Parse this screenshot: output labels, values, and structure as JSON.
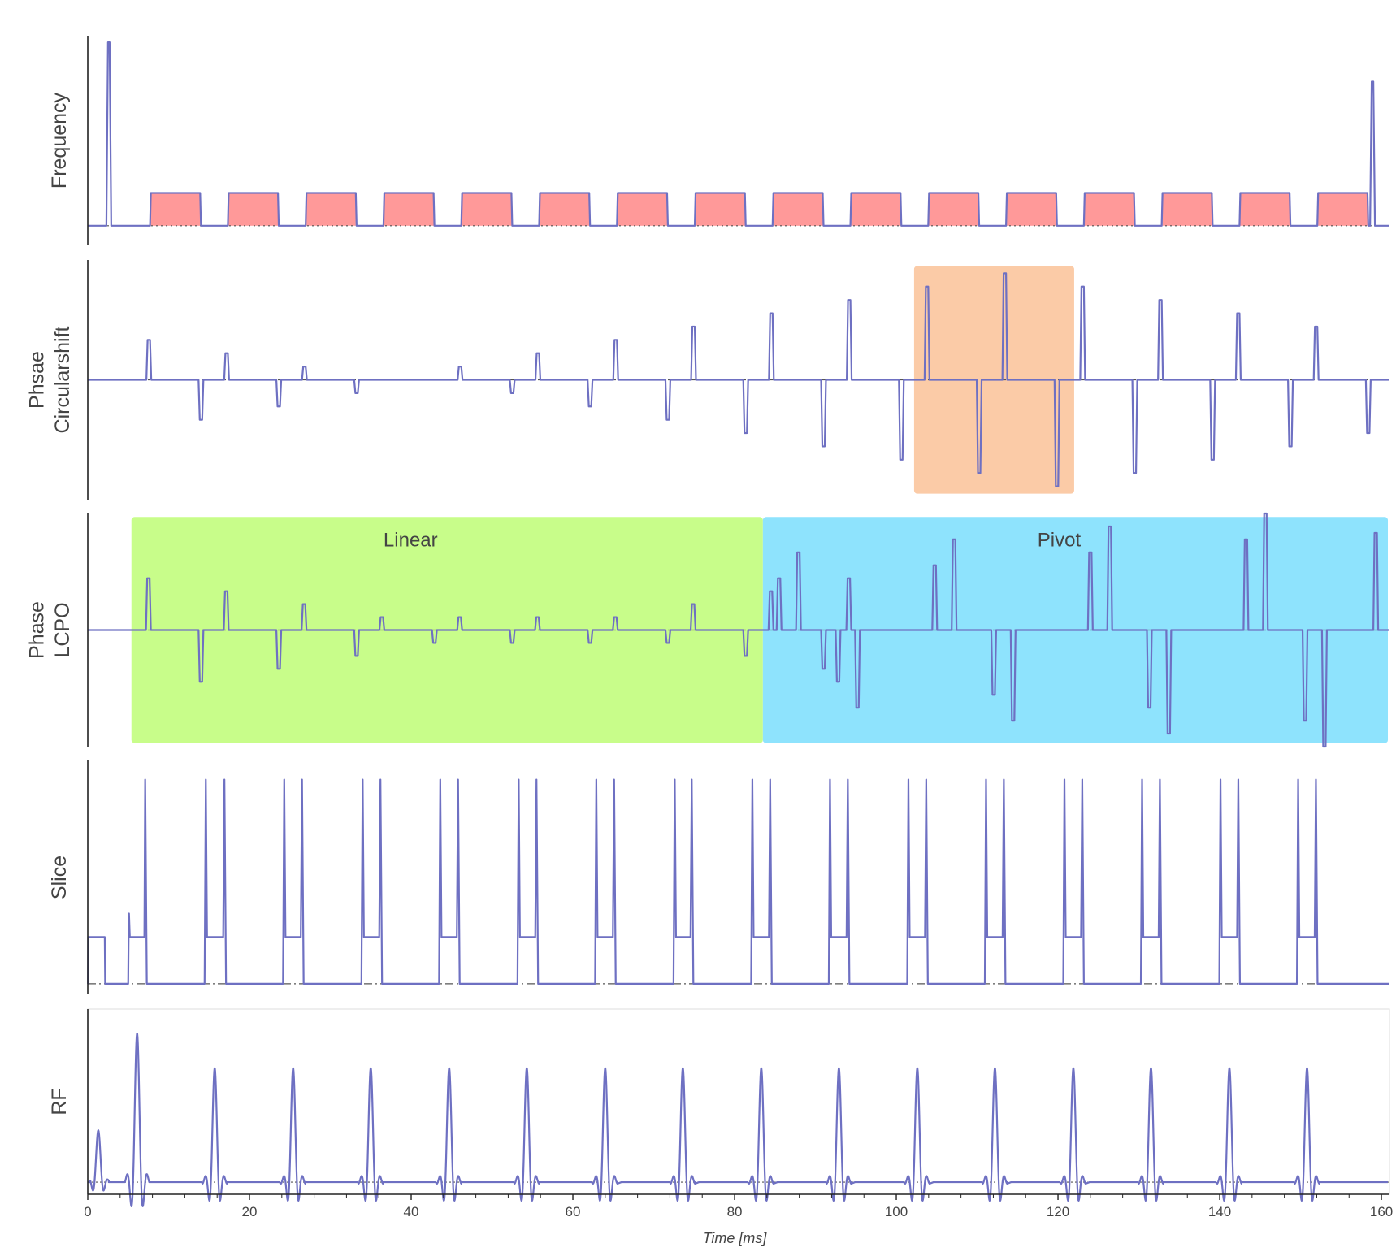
{
  "chart_data": {
    "type": "line",
    "title": "",
    "xlabel": "Time [ms]",
    "xlim": [
      0,
      161
    ],
    "x_ticks": [
      0,
      20,
      40,
      60,
      80,
      100,
      120,
      140,
      160
    ],
    "line_color": "#6e70c2",
    "tr_ms": 9.625,
    "first_echo_ms": 7.5,
    "num_echoes": 16,
    "channels": [
      {
        "id": "frequency",
        "label": "Frequency",
        "ylim": [
          -0.15,
          1.45
        ],
        "prephaser": {
          "center": 2.6,
          "width": 0.6,
          "amplitude": 1.4
        },
        "rephaser": {
          "center": 158.9,
          "width": 0.6,
          "amplitude": 1.1
        },
        "readout": {
          "start": 7.7,
          "duration": 6.3,
          "amplitude": 0.25,
          "fill": "#ff9999"
        }
      },
      {
        "id": "circularshift",
        "label": [
          "Phsae",
          "Circularshift"
        ],
        "ylim": [
          -0.9,
          0.9
        ],
        "blip_width": 0.6,
        "blip_offset": 1.9,
        "amplitudes": [
          0.3,
          0.2,
          0.1,
          0.0,
          0.1,
          0.2,
          0.3,
          0.4,
          0.5,
          0.6,
          0.7,
          0.8,
          0.7,
          0.6,
          0.5,
          0.4
        ],
        "highlight": {
          "x_start": 102.2,
          "x_end": 122,
          "fill": "#fbcba7"
        }
      },
      {
        "id": "lcpo",
        "label": [
          "Phase",
          "LCPO"
        ],
        "ylim": [
          -0.9,
          0.9
        ],
        "blip_width": 0.6,
        "blip_offset": 1.9,
        "amplitudes": [
          0.4,
          0.3,
          0.2,
          0.1,
          0.1,
          0.1,
          0.1,
          0.2,
          0.3,
          0.4
        ],
        "pivot": {
          "echoes": [
            8,
            10,
            12,
            14
          ],
          "pair_gap": 2.4,
          "inner": 0.4,
          "outer": 0.6,
          "outer_step": 0.1,
          "final_blip": 159.3
        },
        "regions": [
          {
            "label": "Linear",
            "x_start": 5.4,
            "x_end": 83.5,
            "fill": "#c8fd8a"
          },
          {
            "label": "Pivot",
            "x_start": 83.5,
            "x_end": 160.8,
            "fill": "#8ee3fd"
          }
        ]
      },
      {
        "id": "slice",
        "label": "Slice",
        "ylim": [
          -0.05,
          1.05
        ],
        "crusher_amplitude": 0.22,
        "spike_amplitude": 0.96,
        "initial_spike": 5.2,
        "crusher_pairs": [
          [
            7.1,
            7.4
          ],
          [
            14.6,
            14.9
          ],
          [
            16.9,
            17.2
          ],
          [
            24.3,
            24.6
          ],
          [
            26.5,
            26.8
          ],
          [
            34.0,
            34.3
          ],
          [
            36.2,
            36.5
          ],
          [
            43.6,
            43.9
          ],
          [
            45.8,
            46.1
          ],
          [
            53.3,
            53.6
          ],
          [
            55.5,
            55.8
          ],
          [
            62.9,
            63.2
          ],
          [
            65.1,
            65.4
          ],
          [
            72.6,
            72.9
          ],
          [
            74.7,
            75.0
          ],
          [
            82.2,
            82.5
          ],
          [
            84.4,
            84.7
          ],
          [
            91.8,
            92.1
          ],
          [
            94.0,
            94.3
          ],
          [
            101.5,
            101.8
          ],
          [
            103.7,
            104.0
          ],
          [
            111.1,
            111.4
          ],
          [
            113.3,
            113.6
          ],
          [
            120.8,
            121.1
          ],
          [
            123.0,
            123.3
          ],
          [
            130.4,
            130.7
          ],
          [
            132.6,
            132.9
          ],
          [
            140.1,
            140.4
          ],
          [
            142.3,
            142.6
          ],
          [
            149.7,
            150.0
          ],
          [
            151.9,
            152.2
          ]
        ]
      },
      {
        "id": "rf",
        "label": "RF",
        "ylim": [
          -0.07,
          1.0
        ],
        "excitation": {
          "center": 1.3,
          "amplitude": 0.3
        },
        "first_refocus": {
          "center": 6.1,
          "amplitude": 0.86
        },
        "refocus_amplitude": 0.66,
        "refocus_centers": [
          15.7,
          25.4,
          35.0,
          44.7,
          54.3,
          64.0,
          73.6,
          83.3,
          92.9,
          102.6,
          112.2,
          121.9,
          131.5,
          141.2,
          150.8
        ]
      }
    ]
  }
}
